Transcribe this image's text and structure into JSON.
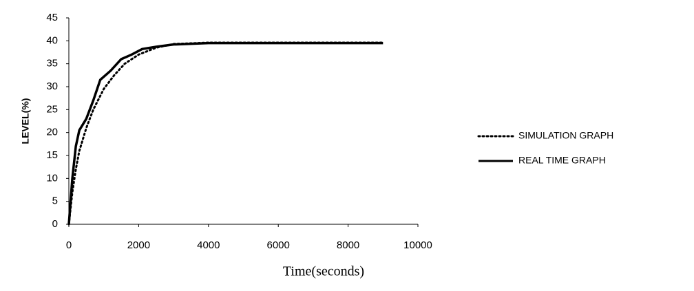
{
  "chart_data": {
    "type": "line",
    "x_label": "Time(seconds)",
    "y_label": "LEVEL(%)",
    "xlim": [
      0,
      10000
    ],
    "xticks": [
      0,
      2000,
      4000,
      6000,
      8000,
      10000
    ],
    "ylim": [
      0,
      45
    ],
    "yticks": [
      0,
      5,
      10,
      15,
      20,
      25,
      30,
      35,
      40,
      45
    ],
    "grid": false,
    "legend": "right",
    "series": [
      {
        "name": "SIMULATION GRAPH",
        "color": "#000000",
        "style": "dotted",
        "x": [
          0,
          100,
          200,
          300,
          500,
          700,
          1000,
          1300,
          1600,
          2000,
          2500,
          3000,
          4000,
          6000,
          9000
        ],
        "values": [
          0,
          7,
          12,
          16,
          21,
          25,
          29.5,
          32.5,
          35,
          37,
          38.5,
          39.3,
          39.6,
          39.6,
          39.6
        ]
      },
      {
        "name": "REAL TIME GRAPH",
        "color": "#000000",
        "style": "solid",
        "x": [
          0,
          100,
          200,
          300,
          500,
          700,
          900,
          1200,
          1500,
          1800,
          2100,
          2500,
          3000,
          4000,
          6000,
          9000
        ],
        "values": [
          0,
          10,
          17,
          20.5,
          23,
          27,
          31.5,
          33.5,
          36,
          37,
          38.2,
          38.7,
          39.2,
          39.5,
          39.5,
          39.5
        ]
      }
    ]
  }
}
